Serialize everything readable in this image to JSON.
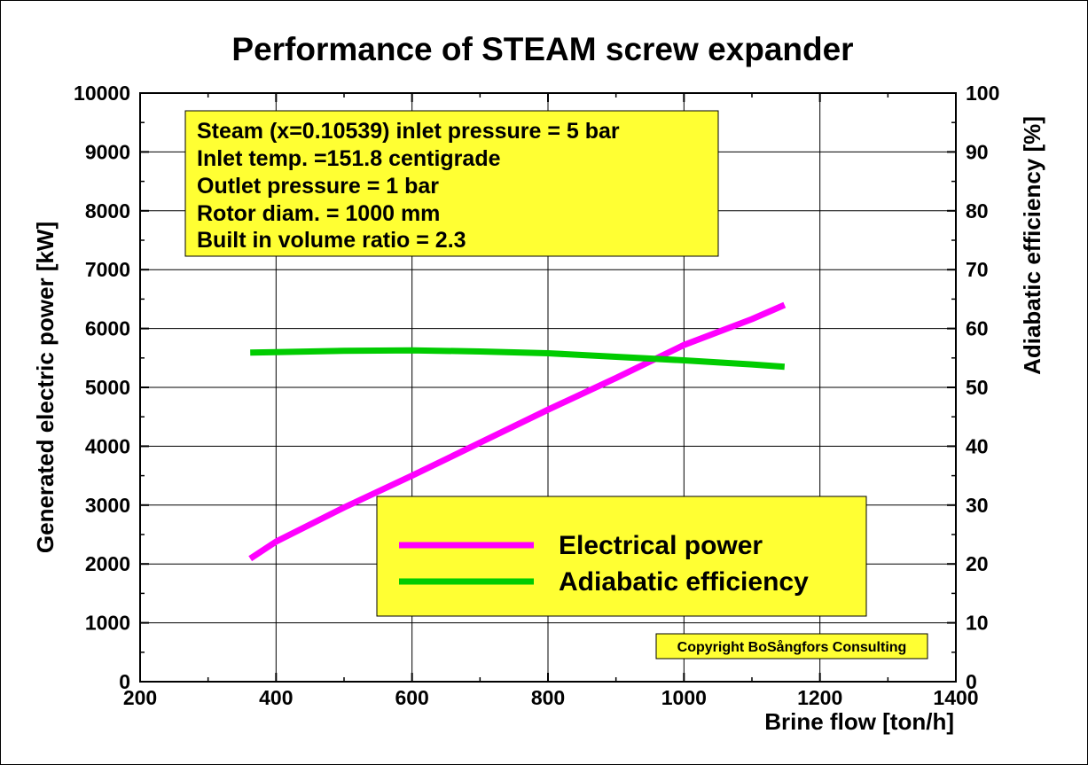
{
  "chart_data": {
    "type": "line",
    "title": "Performance of STEAM screw expander",
    "xlabel": "Brine flow [ton/h]",
    "ylabel": "Generated electric power [kW]",
    "y2label": "Adiabatic efficiency [%]",
    "xlim": [
      200,
      1400
    ],
    "ylim": [
      0,
      10000
    ],
    "y2lim": [
      0,
      100
    ],
    "xticks": [
      "200",
      "400",
      "600",
      "800",
      "1000",
      "1200",
      "1400"
    ],
    "yticks": [
      "0",
      "1000",
      "2000",
      "3000",
      "4000",
      "5000",
      "6000",
      "7000",
      "8000",
      "9000",
      "10000"
    ],
    "y2ticks": [
      "0",
      "10",
      "20",
      "30",
      "40",
      "50",
      "60",
      "70",
      "80",
      "90",
      "100"
    ],
    "grid": true,
    "annotation_lines": [
      "Steam (x=0.10539) inlet pressure = 5 bar",
      "Inlet temp. =151.8 centigrade",
      "Outlet pressure = 1 bar",
      "Rotor diam. = 1000 mm",
      "Built in volume ratio = 2.3"
    ],
    "copyright": "Copyright BoSångfors Consulting",
    "legend_position": "bottom-right",
    "series": [
      {
        "name": "Electrical power",
        "axis": "left",
        "color": "#ff00ff",
        "x": [
          362,
          400,
          500,
          600,
          700,
          800,
          900,
          1000,
          1100,
          1148
        ],
        "values": [
          2090,
          2380,
          2960,
          3500,
          4060,
          4620,
          5160,
          5720,
          6160,
          6400
        ]
      },
      {
        "name": "Adiabatic efficiency",
        "axis": "right",
        "color": "#00cc00",
        "x": [
          362,
          400,
          500,
          600,
          700,
          800,
          900,
          1000,
          1100,
          1148
        ],
        "values": [
          55.9,
          56.0,
          56.2,
          56.3,
          56.1,
          55.8,
          55.2,
          54.6,
          53.9,
          53.5
        ]
      }
    ]
  }
}
